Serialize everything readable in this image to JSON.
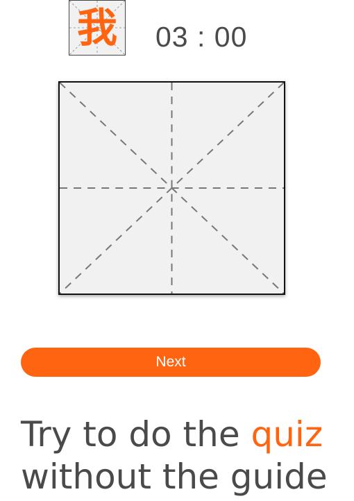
{
  "quiz": {
    "character": "我",
    "timer": "03 : 00"
  },
  "actions": {
    "next_label": "Next"
  },
  "instruction": {
    "before": "Try to do the ",
    "highlight": "quiz",
    "line2": "without the guide"
  },
  "colors": {
    "accent": "#ff6411",
    "text": "#4a4a4a",
    "grid_background": "#f1f1f1",
    "guide_line": "#777777"
  },
  "icons": {
    "grid": "mi-zi-ge-grid"
  }
}
